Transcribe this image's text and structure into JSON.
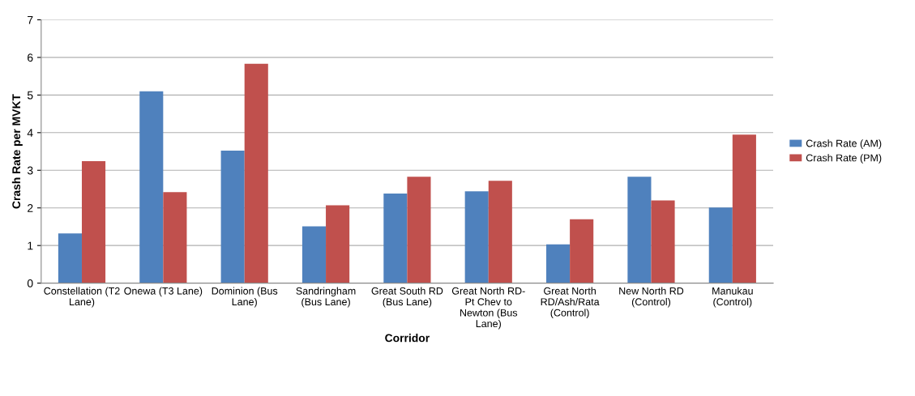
{
  "chart_data": {
    "type": "bar",
    "xlabel": "Corridor",
    "ylabel": "Crash Rate per MVKT",
    "categories": [
      "Constellation (T2\nLane)",
      "Onewa (T3 Lane)",
      "Dominion (Bus\nLane)",
      "Sandringham\n(Bus Lane)",
      "Great South RD\n(Bus Lane)",
      "Great North RD-\nPt Chev to\nNewton (Bus\nLane)",
      "Great North\nRD/Ash/Rata\n(Control)",
      "New North RD\n(Control)",
      "Manukau\n(Control)"
    ],
    "series": [
      {
        "name": "Crash Rate (AM)",
        "color": "#4f81bd",
        "values": [
          1.32,
          5.1,
          3.52,
          1.51,
          2.38,
          2.44,
          1.03,
          2.83,
          2.01
        ]
      },
      {
        "name": "Crash Rate (PM)",
        "color": "#c0504d",
        "values": [
          3.24,
          2.42,
          5.83,
          2.07,
          2.83,
          2.72,
          1.7,
          2.2,
          3.95
        ]
      }
    ],
    "ylim": [
      0,
      7
    ],
    "yticks": [
      0,
      1,
      2,
      3,
      4,
      5,
      6,
      7
    ],
    "grid": "y",
    "legend": "right"
  }
}
